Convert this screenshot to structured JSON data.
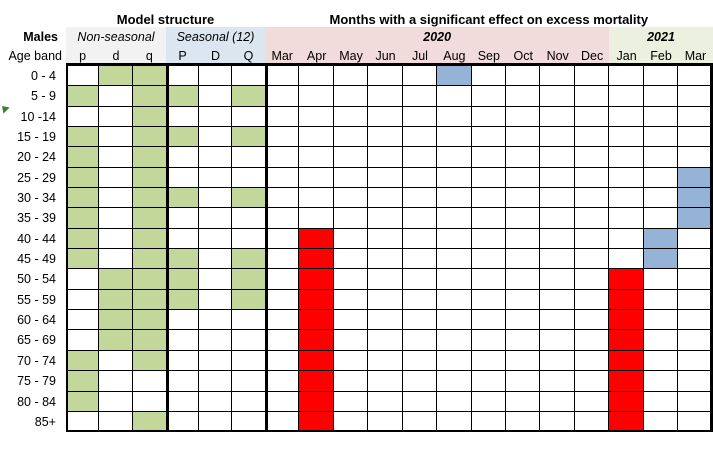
{
  "chart_data": {
    "type": "heatmap",
    "left_block_title": "Model structure",
    "title": "Months with a significant effect on excess mortality",
    "group_label": "Males",
    "row_label": "Age band",
    "column_groups": [
      {
        "label": "Non-seasonal",
        "span": 3,
        "bg": "#F2F2F2"
      },
      {
        "label": "Seasonal (12)",
        "span": 3,
        "bg": "#DCE6F1"
      },
      {
        "label": "2020",
        "span": 10,
        "bg": "#F2DCDB",
        "year": true
      },
      {
        "label": "2021",
        "span": 3,
        "bg": "#EBF1DE",
        "year": true
      }
    ],
    "columns": [
      "p",
      "d",
      "q",
      "P",
      "D",
      "Q",
      "Mar",
      "Apr",
      "May",
      "Jun",
      "Jul",
      "Aug",
      "Sep",
      "Oct",
      "Nov",
      "Dec",
      "Jan",
      "Feb",
      "Mar"
    ],
    "cell_colors": {
      "model_term": "#C4D79B",
      "red": "#FF0000",
      "blue": "#95B3D7",
      "empty": "#FFFFFF"
    },
    "rows": [
      {
        "age_band": "0 - 4",
        "model": [
          0,
          1,
          1,
          0,
          0,
          0
        ],
        "months": [
          "",
          "",
          "",
          "",
          "",
          "blue",
          "",
          "",
          "",
          "",
          "",
          "",
          ""
        ]
      },
      {
        "age_band": "5 - 9",
        "model": [
          1,
          0,
          1,
          1,
          0,
          1
        ],
        "months": [
          "",
          "",
          "",
          "",
          "",
          "",
          "",
          "",
          "",
          "",
          "",
          "",
          ""
        ]
      },
      {
        "age_band": "10 -14",
        "model": [
          0,
          0,
          1,
          0,
          0,
          0
        ],
        "months": [
          "",
          "",
          "",
          "",
          "",
          "",
          "",
          "",
          "",
          "",
          "",
          "",
          ""
        ]
      },
      {
        "age_band": "15 - 19",
        "model": [
          1,
          0,
          1,
          1,
          0,
          1
        ],
        "months": [
          "",
          "",
          "",
          "",
          "",
          "",
          "",
          "",
          "",
          "",
          "",
          "",
          ""
        ]
      },
      {
        "age_band": "20 - 24",
        "model": [
          1,
          0,
          1,
          0,
          0,
          0
        ],
        "months": [
          "",
          "",
          "",
          "",
          "",
          "",
          "",
          "",
          "",
          "",
          "",
          "",
          ""
        ]
      },
      {
        "age_band": "25 - 29",
        "model": [
          1,
          0,
          1,
          0,
          0,
          0
        ],
        "months": [
          "",
          "",
          "",
          "",
          "",
          "",
          "",
          "",
          "",
          "",
          "",
          "",
          "blue"
        ]
      },
      {
        "age_band": "30 - 34",
        "model": [
          1,
          0,
          1,
          1,
          0,
          1
        ],
        "months": [
          "",
          "",
          "",
          "",
          "",
          "",
          "",
          "",
          "",
          "",
          "",
          "",
          "blue"
        ]
      },
      {
        "age_band": "35 - 39",
        "model": [
          1,
          0,
          1,
          0,
          0,
          0
        ],
        "months": [
          "",
          "",
          "",
          "",
          "",
          "",
          "",
          "",
          "",
          "",
          "",
          "",
          "blue"
        ]
      },
      {
        "age_band": "40 - 44",
        "model": [
          1,
          0,
          1,
          0,
          0,
          0
        ],
        "months": [
          "",
          "red",
          "",
          "",
          "",
          "",
          "",
          "",
          "",
          "",
          "",
          "blue",
          ""
        ]
      },
      {
        "age_band": "45 - 49",
        "model": [
          1,
          0,
          1,
          1,
          0,
          1
        ],
        "months": [
          "",
          "red",
          "",
          "",
          "",
          "",
          "",
          "",
          "",
          "",
          "",
          "blue",
          ""
        ]
      },
      {
        "age_band": "50 - 54",
        "model": [
          0,
          1,
          1,
          1,
          0,
          1
        ],
        "months": [
          "",
          "red",
          "",
          "",
          "",
          "",
          "",
          "",
          "",
          "",
          "red",
          "",
          ""
        ]
      },
      {
        "age_band": "55 - 59",
        "model": [
          0,
          1,
          1,
          1,
          0,
          1
        ],
        "months": [
          "",
          "red",
          "",
          "",
          "",
          "",
          "",
          "",
          "",
          "",
          "red",
          "",
          ""
        ]
      },
      {
        "age_band": "60 - 64",
        "model": [
          0,
          1,
          1,
          0,
          0,
          0
        ],
        "months": [
          "",
          "red",
          "",
          "",
          "",
          "",
          "",
          "",
          "",
          "",
          "red",
          "",
          ""
        ]
      },
      {
        "age_band": "65 - 69",
        "model": [
          0,
          1,
          1,
          0,
          0,
          0
        ],
        "months": [
          "",
          "red",
          "",
          "",
          "",
          "",
          "",
          "",
          "",
          "",
          "red",
          "",
          ""
        ]
      },
      {
        "age_band": "70 - 74",
        "model": [
          1,
          0,
          1,
          0,
          0,
          0
        ],
        "months": [
          "",
          "red",
          "",
          "",
          "",
          "",
          "",
          "",
          "",
          "",
          "red",
          "",
          ""
        ]
      },
      {
        "age_band": "75 - 79",
        "model": [
          1,
          0,
          0,
          0,
          0,
          0
        ],
        "months": [
          "",
          "red",
          "",
          "",
          "",
          "",
          "",
          "",
          "",
          "",
          "red",
          "",
          ""
        ]
      },
      {
        "age_band": "80 - 84",
        "model": [
          1,
          0,
          0,
          0,
          0,
          0
        ],
        "months": [
          "",
          "red",
          "",
          "",
          "",
          "",
          "",
          "",
          "",
          "",
          "red",
          "",
          ""
        ]
      },
      {
        "age_band": "85+",
        "model": [
          0,
          0,
          1,
          0,
          0,
          0
        ],
        "months": [
          "",
          "red",
          "",
          "",
          "",
          "",
          "",
          "",
          "",
          "",
          "red",
          "",
          ""
        ]
      }
    ]
  }
}
